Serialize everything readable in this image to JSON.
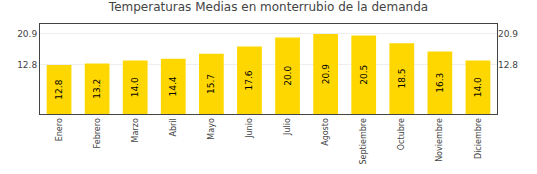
{
  "chart_data": {
    "type": "bar",
    "title": "Temperaturas Medias en monterrubio de la demanda",
    "categories": [
      "Enero",
      "Febrero",
      "Marzo",
      "Abril",
      "Mayo",
      "Junio",
      "Julio",
      "Agosto",
      "Septiembre",
      "Octubre",
      "Noviembre",
      "Diciembre"
    ],
    "values": [
      12.8,
      13.2,
      14.0,
      14.4,
      15.7,
      17.6,
      20.0,
      20.9,
      20.5,
      18.5,
      16.3,
      14.0
    ],
    "value_labels": [
      "12.8",
      "13.2",
      "14.0",
      "14.4",
      "15.7",
      "17.6",
      "20.0",
      "20.9",
      "20.5",
      "18.5",
      "16.3",
      "14.0"
    ],
    "color": "#FFD700",
    "ylim": [
      0,
      23.5
    ],
    "yticks": [
      12.8,
      20.9
    ],
    "y2lim": [
      0,
      23.5
    ],
    "y2ticks": [
      12.8,
      20.9
    ],
    "grid": true,
    "data_labels": true
  }
}
